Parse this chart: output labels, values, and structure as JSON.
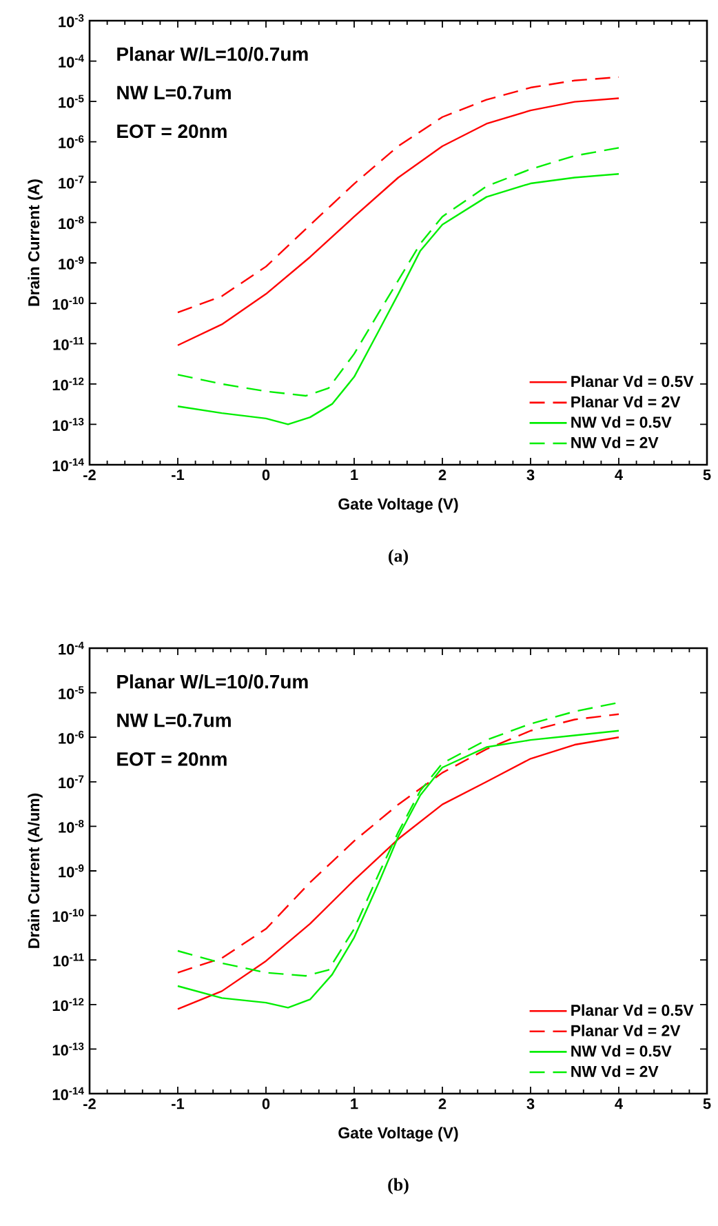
{
  "chart_data": [
    {
      "type": "line",
      "xlabel": "Gate Voltage (V)",
      "ylabel": "Drain Current (A)",
      "log": "y",
      "legend": "bottom right",
      "annotations": [
        "Planar W/L=10/0.7um",
        "NW L=0.7um",
        "EOT = 20nm",
        "(a)"
      ],
      "xlim": [
        -2,
        5
      ],
      "xticks": [
        -2,
        -1,
        0,
        1,
        2,
        3,
        4,
        5
      ],
      "ylim": [
        1e-14,
        0.001
      ],
      "yticks": [
        {
          "value": 1e-14,
          "label": "10$^{-14}$"
        },
        {
          "value": 1e-13,
          "label": "10$^{-13}$"
        },
        {
          "value": 1e-12,
          "label": "10$^{-12}$"
        },
        {
          "value": 1e-11,
          "label": "10$^{-11}$"
        },
        {
          "value": 1e-10,
          "label": "10$^{-10}$"
        },
        {
          "value": 1e-09,
          "label": "10$^{-9}$"
        },
        {
          "value": 1e-08,
          "label": "10$^{-8}$"
        },
        {
          "value": 1e-07,
          "label": "10$^{-7}$"
        },
        {
          "value": 1e-06,
          "label": "10$^{-6}$"
        },
        {
          "value": 1e-05,
          "label": "10$^{-5}$"
        },
        {
          "value": 0.0001,
          "label": "10$^{-4}$"
        },
        {
          "value": 0.001,
          "label": "10$^{-3}$"
        }
      ],
      "series": [
        {
          "name": "Planar  Vd = 0.5V",
          "color": "#ff0000",
          "line_style": "solid",
          "x": [
            -1,
            -0.5,
            0,
            0.5,
            1,
            1.5,
            2,
            2.5,
            3,
            3.5,
            4
          ],
          "values": [
            9.1e-12,
            3e-11,
            1.7e-10,
            1.4e-09,
            1.4e-08,
            1.3e-07,
            7.8e-07,
            2.8e-06,
            6e-06,
            9.8e-06,
            1.2e-05
          ]
        },
        {
          "name": "Planar  Vd = 2V",
          "color": "#ff0000",
          "line_style": "dashed",
          "x": [
            -1,
            -0.5,
            0,
            0.5,
            1,
            1.5,
            2,
            2.5,
            3,
            3.5,
            4
          ],
          "values": [
            5.9e-11,
            1.5e-10,
            8.1e-10,
            8.7e-09,
            9.1e-08,
            7.8e-07,
            4.1e-06,
            1.1e-05,
            2.2e-05,
            3.3e-05,
            4e-05
          ]
        },
        {
          "name": "NW  Vd = 0.5V",
          "color": "#00ee00",
          "line_style": "solid",
          "x": [
            -1,
            -0.5,
            0,
            0.25,
            0.5,
            0.75,
            1,
            1.28,
            1.5,
            1.75,
            2,
            2.5,
            3,
            3.5,
            4
          ],
          "values": [
            2.8e-13,
            1.9e-13,
            1.4e-13,
            1e-13,
            1.5e-13,
            3.2e-13,
            1.5e-12,
            2.1e-11,
            1.7e-10,
            2e-09,
            8.9e-09,
            4.3e-08,
            9.3e-08,
            1.3e-07,
            1.6e-07
          ]
        },
        {
          "name": "NW  Vd = 2V",
          "color": "#00ee00",
          "line_style": "dashed",
          "x": [
            -1,
            -0.5,
            0,
            0.45,
            0.71,
            1,
            1.28,
            1.5,
            1.75,
            2,
            2.5,
            3,
            3.5,
            4
          ],
          "values": [
            1.7e-12,
            1e-12,
            6.6e-13,
            5.1e-13,
            7.9e-13,
            5.6e-12,
            5.9e-11,
            3.7e-10,
            3e-09,
            1.4e-08,
            7.9e-08,
            2.1e-07,
            4.5e-07,
            7.1e-07
          ]
        }
      ]
    },
    {
      "type": "line",
      "xlabel": "Gate Voltage (V)",
      "ylabel": "Drain Current (A/um)",
      "log": "y",
      "legend": "bottom right",
      "annotations": [
        "Planar W/L=10/0.7um",
        "NW L=0.7um",
        "EOT = 20nm",
        "(b)"
      ],
      "xlim": [
        -2,
        5
      ],
      "xticks": [
        -2,
        -1,
        0,
        1,
        2,
        3,
        4,
        5
      ],
      "ylim": [
        1e-14,
        0.0001
      ],
      "yticks": [
        {
          "value": 1e-14,
          "label": "10$^{-14}$"
        },
        {
          "value": 1e-13,
          "label": "10$^{-13}$"
        },
        {
          "value": 1e-12,
          "label": "10$^{-12}$"
        },
        {
          "value": 1e-11,
          "label": "10$^{-11}$"
        },
        {
          "value": 1e-10,
          "label": "10$^{-10}$"
        },
        {
          "value": 1e-09,
          "label": "10$^{-9}$"
        },
        {
          "value": 1e-08,
          "label": "10$^{-8}$"
        },
        {
          "value": 1e-07,
          "label": "10$^{-7}$"
        },
        {
          "value": 1e-06,
          "label": "10$^{-6}$"
        },
        {
          "value": 1e-05,
          "label": "10$^{-5}$"
        },
        {
          "value": 0.0001,
          "label": "10$^{-4}$"
        }
      ],
      "series": [
        {
          "name": "Planar  Vd = 0.5V",
          "color": "#ff0000",
          "line_style": "solid",
          "x": [
            -1,
            -0.5,
            0,
            0.5,
            1,
            1.5,
            2,
            2.5,
            3,
            3.5,
            4
          ],
          "values": [
            7.9e-13,
            2e-12,
            9.5e-12,
            6.5e-11,
            6.2e-10,
            5.2e-09,
            3.1e-08,
            1e-07,
            3.3e-07,
            6.8e-07,
            1e-06
          ]
        },
        {
          "name": "Planar  Vd = 2V",
          "color": "#ff0000",
          "line_style": "dashed",
          "x": [
            -1,
            -0.5,
            0,
            0.5,
            1,
            1.5,
            2,
            2.5,
            3,
            3.5,
            4
          ],
          "values": [
            5.2e-12,
            1.1e-11,
            5e-11,
            5.5e-10,
            4.7e-09,
            3.1e-08,
            1.6e-07,
            5.4e-07,
            1.4e-06,
            2.5e-06,
            3.3e-06
          ]
        },
        {
          "name": "NW  Vd = 0.5V",
          "color": "#00ee00",
          "line_style": "solid",
          "x": [
            -1,
            -0.5,
            0,
            0.25,
            0.5,
            0.75,
            1,
            1.28,
            1.5,
            1.75,
            2,
            2.5,
            3,
            3.5,
            4
          ],
          "values": [
            2.6e-12,
            1.4e-12,
            1.1e-12,
            8.5e-13,
            1.3e-12,
            4.7e-12,
            3.2e-11,
            5.5e-10,
            5.9e-09,
            5e-08,
            2.1e-07,
            6e-07,
            8.7e-07,
            1.1e-06,
            1.4e-06
          ]
        },
        {
          "name": "NW  Vd = 2V",
          "color": "#00ee00",
          "line_style": "dashed",
          "x": [
            -1,
            -0.5,
            0,
            0.45,
            0.71,
            1,
            1.28,
            1.5,
            1.75,
            2,
            2.5,
            3,
            3.5,
            4
          ],
          "values": [
            1.6e-11,
            8.5e-12,
            5.2e-12,
            4.4e-12,
            6e-12,
            5e-11,
            8.7e-10,
            7.4e-09,
            6.3e-08,
            2.6e-07,
            8.7e-07,
            2e-06,
            3.8e-06,
            6e-06
          ]
        }
      ]
    }
  ]
}
